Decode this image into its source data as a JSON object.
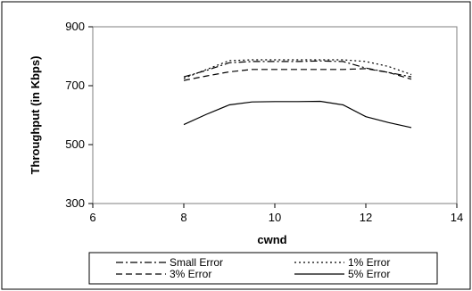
{
  "chart_data": {
    "type": "line",
    "title": "",
    "xlabel": "cwnd",
    "ylabel": "Throughput (in Kbps)",
    "xlim": [
      6,
      14
    ],
    "ylim": [
      300,
      900
    ],
    "x_ticks": [
      6,
      8,
      10,
      12,
      14
    ],
    "y_ticks": [
      300,
      500,
      700,
      900
    ],
    "grid": false,
    "legend_position": "bottom",
    "series": [
      {
        "name": "Small Error",
        "dash": "dash-dot",
        "x": [
          8,
          8.5,
          9,
          9.5,
          10,
          10.5,
          11,
          11.5,
          12,
          12.5,
          13
        ],
        "y": [
          730,
          752,
          778,
          782,
          782,
          782,
          784,
          782,
          760,
          745,
          730
        ]
      },
      {
        "name": "1% Error",
        "dash": "dotted",
        "x": [
          8,
          8.5,
          9,
          9.5,
          10,
          10.5,
          11,
          11.5,
          12,
          12.5,
          13
        ],
        "y": [
          725,
          755,
          785,
          788,
          788,
          788,
          788,
          788,
          782,
          765,
          738
        ]
      },
      {
        "name": "3% Error",
        "dash": "dashed",
        "x": [
          8,
          8.5,
          9,
          9.5,
          10,
          10.5,
          11,
          11.5,
          12,
          12.5,
          13
        ],
        "y": [
          718,
          733,
          747,
          755,
          755,
          755,
          755,
          755,
          758,
          745,
          722
        ]
      },
      {
        "name": "5% Error",
        "dash": "solid",
        "x": [
          8,
          8.5,
          9,
          9.5,
          10,
          10.5,
          11,
          11.5,
          12,
          12.5,
          13
        ],
        "y": [
          568,
          603,
          635,
          645,
          646,
          646,
          647,
          635,
          595,
          575,
          558
        ]
      }
    ]
  }
}
